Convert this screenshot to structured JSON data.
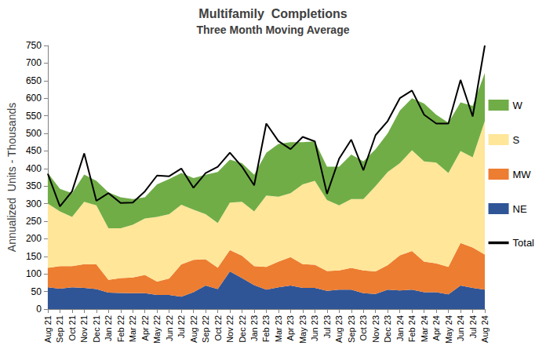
{
  "chart_data": {
    "type": "area",
    "title": "Multifamily  Completions",
    "subtitle": "Three Month Moving Average",
    "y_label": "Annualized  Units - Thousands",
    "categories": [
      "Aug 21",
      "Sep 21",
      "Oct 21",
      "Nov 21",
      "Dec 21",
      "Jan 22",
      "Feb 22",
      "Mar 22",
      "Apr 22",
      "May 22",
      "Jun 22",
      "Jul 22",
      "Aug 22",
      "Sep 22",
      "Oct 22",
      "Nov 22",
      "Dec 22",
      "Jan 23",
      "Feb 23",
      "Mar 23",
      "Apr 23",
      "May 23",
      "Jun 23",
      "Jul 23",
      "Aug 23",
      "Sep 23",
      "Oct 23",
      "Nov 23",
      "Dec 23",
      "Jan 24",
      "Feb 24",
      "Mar 24",
      "Apr 24",
      "May 24",
      "Jun 24",
      "Jul 24",
      "Aug 24"
    ],
    "series": [
      {
        "name": "NE",
        "type": "area",
        "color": "#2f5597",
        "values": [
          62,
          58,
          62,
          60,
          57,
          47,
          46,
          45,
          45,
          40,
          40,
          35,
          48,
          67,
          57,
          107,
          88,
          68,
          55,
          62,
          67,
          60,
          60,
          52,
          55,
          55,
          45,
          43,
          55,
          53,
          55,
          48,
          48,
          42,
          67,
          60,
          55
        ]
      },
      {
        "name": "MW",
        "type": "area",
        "color": "#ed7d31",
        "values": [
          55,
          64,
          60,
          68,
          70,
          36,
          42,
          45,
          52,
          38,
          47,
          92,
          92,
          75,
          61,
          61,
          64,
          54,
          65,
          73,
          81,
          68,
          66,
          56,
          55,
          62,
          65,
          64,
          70,
          100,
          110,
          87,
          82,
          78,
          121,
          115,
          100
        ]
      },
      {
        "name": "S",
        "type": "area",
        "color": "#ffe699",
        "values": [
          183,
          156,
          140,
          177,
          168,
          147,
          142,
          150,
          161,
          184,
          183,
          170,
          143,
          128,
          127,
          135,
          153,
          156,
          203,
          185,
          182,
          227,
          239,
          202,
          185,
          196,
          203,
          243,
          265,
          262,
          287,
          285,
          287,
          267,
          262,
          257,
          380
        ]
      },
      {
        "name": "W",
        "type": "area",
        "color": "#70ad47",
        "values": [
          87,
          64,
          68,
          78,
          70,
          102,
          88,
          73,
          60,
          93,
          100,
          90,
          90,
          112,
          145,
          122,
          110,
          104,
          122,
          150,
          145,
          120,
          112,
          95,
          110,
          127,
          107,
          105,
          110,
          150,
          148,
          165,
          136,
          143,
          138,
          146,
          137
        ]
      },
      {
        "name": "Total",
        "type": "line",
        "color": "#000000",
        "values": [
          385,
          292,
          335,
          443,
          308,
          330,
          302,
          303,
          335,
          380,
          378,
          400,
          345,
          387,
          405,
          445,
          405,
          352,
          528,
          478,
          455,
          490,
          477,
          328,
          428,
          482,
          395,
          495,
          535,
          600,
          622,
          553,
          528,
          528,
          652,
          548,
          750
        ]
      }
    ],
    "stacked": true,
    "ylim": [
      0,
      750
    ],
    "yticks": [
      0,
      50,
      100,
      150,
      200,
      250,
      300,
      350,
      400,
      450,
      500,
      550,
      600,
      650,
      700,
      750
    ],
    "grid": false,
    "legend": "right"
  }
}
